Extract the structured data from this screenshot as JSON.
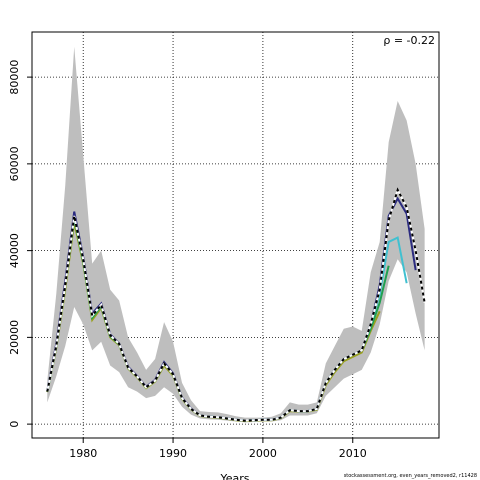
{
  "chart_data": {
    "type": "line",
    "annotation": "ρ = -0.22",
    "x_label": "Years",
    "footer": "stockassessment.org, even_years_removed2, r11428",
    "xlim": [
      1974.3,
      2019.6
    ],
    "ylim": [
      -3200,
      90400
    ],
    "xticks": [
      1980,
      1990,
      2000,
      2010
    ],
    "yticks": [
      0,
      20000,
      40000,
      60000,
      80000
    ],
    "grid": true,
    "band_color": "#bebebe",
    "x": [
      1976,
      1977,
      1978,
      1979,
      1980,
      1981,
      1982,
      1983,
      1984,
      1985,
      1986,
      1987,
      1988,
      1989,
      1990,
      1991,
      1992,
      1993,
      1994,
      1995,
      1996,
      1997,
      1998,
      1999,
      2000,
      2001,
      2002,
      2003,
      2004,
      2005,
      2006,
      2007,
      2008,
      2009,
      2010,
      2011,
      2012,
      2013,
      2014,
      2015,
      2016,
      2017,
      2018
    ],
    "upper": [
      10000,
      30000,
      55000,
      87000,
      62000,
      37000,
      40000,
      31000,
      28500,
      20000,
      16500,
      12500,
      15000,
      23500,
      19000,
      9500,
      5500,
      3000,
      2800,
      2700,
      2300,
      1800,
      1500,
      1500,
      1500,
      1700,
      2500,
      5000,
      4500,
      4500,
      5000,
      14000,
      18000,
      22000,
      22500,
      21500,
      35000,
      42000,
      65000,
      74500,
      70000,
      60000,
      45000
    ],
    "lower": [
      5000,
      11000,
      18000,
      27000,
      23000,
      17000,
      19000,
      13500,
      12000,
      8500,
      7500,
      6000,
      6500,
      8500,
      7000,
      4000,
      2200,
      1300,
      1100,
      1000,
      800,
      600,
      400,
      500,
      600,
      600,
      900,
      2000,
      2000,
      2000,
      2500,
      6500,
      8500,
      10500,
      11500,
      12500,
      16500,
      23000,
      33000,
      38000,
      35000,
      25500,
      17000
    ],
    "series": [
      {
        "color": "#9aa020",
        "values": [
          7400,
          17500,
          31000,
          46500,
          37000,
          24000,
          26800,
          20000,
          18200,
          12800,
          10800,
          8300,
          9800,
          13500,
          11200,
          5800,
          3400,
          1900,
          1600,
          1500,
          1200,
          900,
          700,
          800,
          900,
          900,
          1400,
          3000,
          2900,
          2900,
          3300,
          9000,
          12000,
          14500,
          15500,
          16500,
          21500,
          26000,
          null,
          null,
          null,
          null,
          null
        ]
      },
      {
        "color": "#20a050",
        "values": [
          7500,
          18000,
          32000,
          47500,
          37500,
          24500,
          27200,
          20300,
          18400,
          13000,
          11000,
          8500,
          10000,
          14000,
          11500,
          6000,
          3500,
          2000,
          1700,
          1600,
          1300,
          1000,
          800,
          900,
          1000,
          1000,
          1500,
          3200,
          3000,
          3000,
          3500,
          9500,
          12500,
          15000,
          16000,
          17000,
          22000,
          28000,
          36500,
          null,
          null,
          null,
          null
        ]
      },
      {
        "color": "#40c0d0",
        "values": [
          7500,
          18000,
          32000,
          48000,
          38000,
          25000,
          27500,
          20500,
          18500,
          13000,
          11000,
          8500,
          10000,
          14000,
          11500,
          6000,
          3500,
          2000,
          1700,
          1600,
          1300,
          1000,
          800,
          900,
          1000,
          1000,
          1500,
          3200,
          3000,
          3000,
          3500,
          9500,
          12500,
          15000,
          16000,
          17000,
          23000,
          30000,
          42000,
          43000,
          32500,
          null,
          null
        ]
      },
      {
        "color": "#2b2b80",
        "values": [
          7600,
          18500,
          33000,
          49000,
          38500,
          25500,
          27800,
          20700,
          18600,
          13200,
          11100,
          8600,
          10200,
          14300,
          11700,
          6100,
          3600,
          2000,
          1700,
          1600,
          1300,
          1000,
          800,
          900,
          1000,
          1000,
          1500,
          3200,
          3000,
          3000,
          3500,
          9500,
          12500,
          15000,
          16000,
          17000,
          23000,
          32000,
          48000,
          52000,
          48500,
          35500,
          null
        ]
      },
      {
        "color": "#000000",
        "linestyle": "dashed",
        "values": [
          7500,
          18000,
          32000,
          48000,
          38000,
          25000,
          27500,
          20500,
          18500,
          13000,
          11000,
          8500,
          10000,
          14000,
          11500,
          6000,
          3500,
          2000,
          1700,
          1600,
          1300,
          1000,
          800,
          900,
          1000,
          1000,
          1500,
          3200,
          3000,
          3000,
          3500,
          9500,
          12500,
          15000,
          16000,
          17000,
          23000,
          31000,
          47000,
          54000,
          50000,
          40000,
          28000
        ]
      }
    ]
  }
}
